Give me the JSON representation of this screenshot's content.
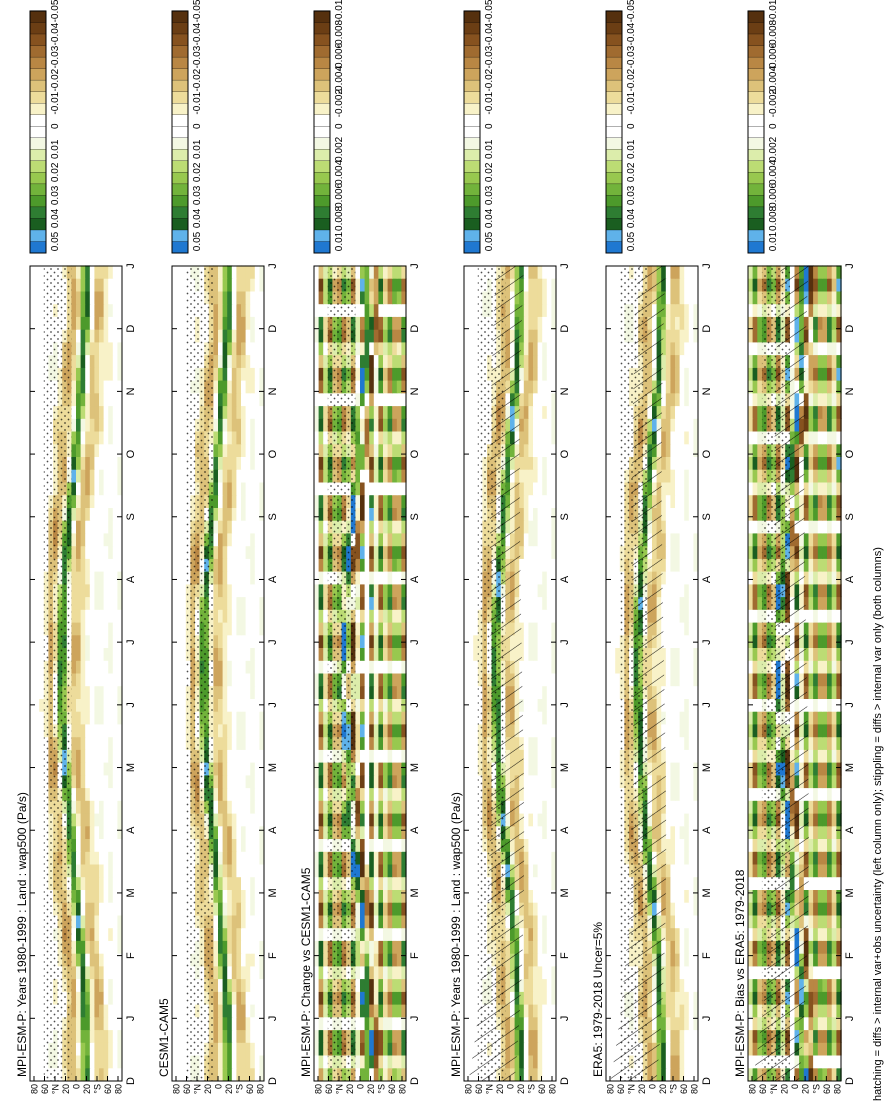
{
  "figure_note": "hatching = diffs > internal var+obs uncertainty (left column only); stippling = diffs > internal var only (both columns)",
  "months": [
    "D",
    "J",
    "F",
    "M",
    "A",
    "M",
    "J",
    "J",
    "A",
    "S",
    "O",
    "N",
    "D",
    "J"
  ],
  "lat_labels": [
    "80",
    "60",
    "°N",
    "20",
    "0",
    "20",
    "°S",
    "60",
    "80"
  ],
  "panels": [
    {
      "id": "mpi-left",
      "title": "MPI-ESM-P: Years 1980-1999 : Land : wap500 (Pa/s)",
      "kind": "clim",
      "hatching": true
    },
    {
      "id": "era5",
      "title": "ERA5: 1979-2018 Uncer=5%",
      "kind": "clim",
      "hatching": true
    },
    {
      "id": "bias",
      "title": "MPI-ESM-P: Bias vs ERA5: 1979-2018",
      "kind": "diff",
      "hatching": true
    },
    {
      "id": "mpi-right",
      "title": "MPI-ESM-P: Years 1980-1999 : Land : wap500 (Pa/s)",
      "kind": "clim",
      "hatching": false
    },
    {
      "id": "cesm",
      "title": "CESM1-CAM5",
      "kind": "clim",
      "hatching": false
    },
    {
      "id": "change",
      "title": "MPI-ESM-P: Change vs CESM1-CAM5",
      "kind": "diff",
      "hatching": false
    }
  ],
  "colorbars": {
    "clim": {
      "labels": [
        "0.05",
        "0.04",
        "0.03",
        "0.02",
        "0.01",
        "0",
        "-0.01",
        "-0.02",
        "-0.03",
        "-0.04",
        "-0.05"
      ],
      "colors": [
        "#1f78d1",
        "#5fb2ea",
        "#1a5e20",
        "#2e7d32",
        "#4d9a2b",
        "#72b33b",
        "#98c84f",
        "#bcdc74",
        "#dcedab",
        "#f3f8e3",
        "#ffffff",
        "#ffffff",
        "#f8f2c8",
        "#eddc9b",
        "#ddc27a",
        "#cda45c",
        "#b98744",
        "#a06b30",
        "#86521f",
        "#6b3e14",
        "#55300e"
      ]
    },
    "diff": {
      "labels": [
        "0.01",
        "0.008",
        "0.006",
        "0.004",
        "0.002",
        "0",
        "-0.002",
        "-0.004",
        "-0.006",
        "-0.008",
        "-0.01"
      ],
      "colors": [
        "#1f78d1",
        "#5fb2ea",
        "#1a5e20",
        "#2e7d32",
        "#4d9a2b",
        "#72b33b",
        "#98c84f",
        "#bcdc74",
        "#dcedab",
        "#f3f8e3",
        "#ffffff",
        "#ffffff",
        "#f8f2c8",
        "#eddc9b",
        "#ddc27a",
        "#cda45c",
        "#b98744",
        "#a06b30",
        "#86521f",
        "#6b3e14",
        "#55300e"
      ]
    }
  },
  "chart_data": [
    {
      "type": "heatmap",
      "title": "MPI-ESM-P: Years 1980-1999 : Land : wap500 (Pa/s)",
      "x": [
        "D",
        "J",
        "F",
        "M",
        "A",
        "M",
        "J",
        "J",
        "A",
        "S",
        "O",
        "N",
        "D",
        "J"
      ],
      "y": [
        "80",
        "60",
        "°N",
        "20",
        "0",
        "20",
        "°S",
        "60",
        "80"
      ],
      "clim": [
        -0.05,
        0.05
      ],
      "hatching": true,
      "stippling": true
    },
    {
      "type": "heatmap",
      "title": "ERA5: 1979-2018 Uncer=5%",
      "x": [
        "D",
        "J",
        "F",
        "M",
        "A",
        "M",
        "J",
        "J",
        "A",
        "S",
        "O",
        "N",
        "D",
        "J"
      ],
      "y": [
        "80",
        "60",
        "°N",
        "20",
        "0",
        "20",
        "°S",
        "60",
        "80"
      ],
      "clim": [
        -0.05,
        0.05
      ],
      "hatching": true,
      "stippling": true
    },
    {
      "type": "heatmap",
      "title": "MPI-ESM-P: Bias vs ERA5: 1979-2018",
      "x": [
        "D",
        "J",
        "F",
        "M",
        "A",
        "M",
        "J",
        "J",
        "A",
        "S",
        "O",
        "N",
        "D",
        "J"
      ],
      "y": [
        "80",
        "60",
        "°N",
        "20",
        "0",
        "20",
        "°S",
        "60",
        "80"
      ],
      "clim": [
        -0.01,
        0.01
      ],
      "hatching": true,
      "stippling": true
    },
    {
      "type": "heatmap",
      "title": "MPI-ESM-P: Years 1980-1999 : Land : wap500 (Pa/s)",
      "x": [
        "D",
        "J",
        "F",
        "M",
        "A",
        "M",
        "J",
        "J",
        "A",
        "S",
        "O",
        "N",
        "D",
        "J"
      ],
      "y": [
        "80",
        "60",
        "°N",
        "20",
        "0",
        "20",
        "°S",
        "60",
        "80"
      ],
      "clim": [
        -0.05,
        0.05
      ],
      "hatching": false,
      "stippling": true
    },
    {
      "type": "heatmap",
      "title": "CESM1-CAM5",
      "x": [
        "D",
        "J",
        "F",
        "M",
        "A",
        "M",
        "J",
        "J",
        "A",
        "S",
        "O",
        "N",
        "D",
        "J"
      ],
      "y": [
        "80",
        "60",
        "°N",
        "20",
        "0",
        "20",
        "°S",
        "60",
        "80"
      ],
      "clim": [
        -0.05,
        0.05
      ],
      "hatching": false,
      "stippling": true
    },
    {
      "type": "heatmap",
      "title": "MPI-ESM-P: Change vs CESM1-CAM5",
      "x": [
        "D",
        "J",
        "F",
        "M",
        "A",
        "M",
        "J",
        "J",
        "A",
        "S",
        "O",
        "N",
        "D",
        "J"
      ],
      "y": [
        "80",
        "60",
        "°N",
        "20",
        "0",
        "20",
        "°S",
        "60",
        "80"
      ],
      "clim": [
        -0.01,
        0.01
      ],
      "hatching": false,
      "stippling": true
    }
  ]
}
